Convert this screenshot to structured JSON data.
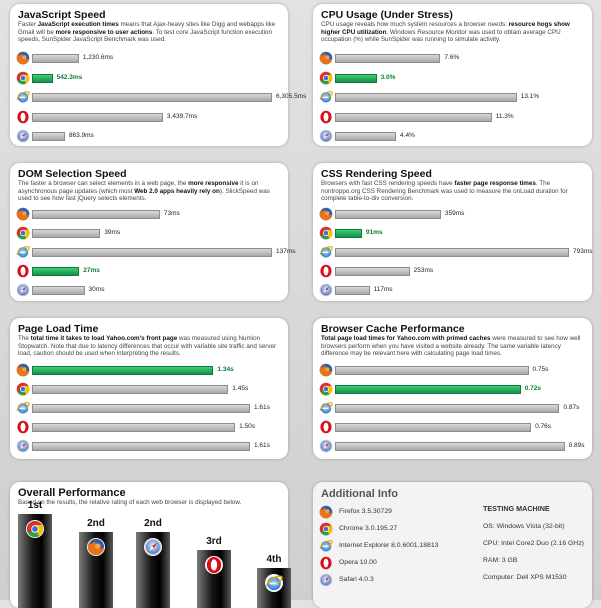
{
  "colors": {
    "best": "#16904a",
    "bar": "#a9a9a9"
  },
  "browsers": [
    {
      "icon": "firefox-icon"
    },
    {
      "icon": "chrome-icon"
    },
    {
      "icon": "internet-explorer-icon"
    },
    {
      "icon": "opera-icon"
    },
    {
      "icon": "safari-icon"
    }
  ],
  "panels": {
    "js": {
      "title": "JavaScript Speed",
      "desc_parts": [
        "Faster ",
        "JavaScript execution times",
        " means that Ajax-heavy sites like Digg and webapps like Gmail will be ",
        "more responsive to user actions",
        ". To test core JavaScript function execution speeds, SunSpider JavaScript Benchmark was used."
      ],
      "labels": [
        "1,230.6ms",
        "542.3ms",
        "6,305.5ms",
        "3,439.7ms",
        "863.9ms"
      ]
    },
    "cpu": {
      "title": "CPU Usage (Under Stress)",
      "desc_parts": [
        "CPU usage reveals how much system resources a browser needs: ",
        "resource hogs show higher CPU utilization",
        ". Windows Resource Monitor was used to obtain average CPU occupation (%) while SunSpider was running to simulate activity."
      ],
      "labels": [
        "7.6%",
        "3.0%",
        "13.1%",
        "11.3%",
        "4.4%"
      ]
    },
    "dom": {
      "title": "DOM Selection Speed",
      "desc_parts": [
        "The faster a browser can select elements in a web page, the ",
        "more responsive",
        " it is on asynchronous page updates (which most ",
        "Web 2.0 apps heavily rely on",
        "). SlickSpeed was used to see how fast jQuery selects elements."
      ],
      "labels": [
        "73ms",
        "39ms",
        "137ms",
        "27ms",
        "30ms"
      ]
    },
    "css": {
      "title": "CSS Rendering Speed",
      "desc_parts": [
        "Browsers with fast CSS rendering speeds have ",
        "faster page response times",
        ". The nontroppo.org CSS Rendering Benchmark was used to measure the onLoad duration for complete table-to-div conversion."
      ],
      "labels": [
        "359ms",
        "91ms",
        "793ms",
        "253ms",
        "117ms"
      ]
    },
    "load": {
      "title": "Page Load Time",
      "desc_parts": [
        "The ",
        "total time it takes to load Yahoo.com's front page",
        " was measured using Numion Stopwatch. Note that due to latency differences that occur with variable site traffic and server load, caution should be used when interpreting the results."
      ],
      "labels": [
        "1.34s",
        "1.45s",
        "1.61s",
        "1.50s",
        "1.61s"
      ]
    },
    "cache": {
      "title": "Browser Cache Performance",
      "desc_parts": [
        "Total page load times for Yahoo.com with primed caches",
        " were measured to see how well browsers perform when you have visited a website already. The same variable latency difference may be relevant here with calculating page load times."
      ],
      "labels": [
        "0.75s",
        "0.72s",
        "0.87s",
        "0.76s",
        "0.89s"
      ]
    }
  },
  "overall": {
    "title": "Overall Performance",
    "desc": "Based on the results, the relative rating of each web browser is displayed below.",
    "ranks": [
      {
        "label": "1st",
        "icon": "chrome-icon"
      },
      {
        "label": "2nd",
        "icon": "firefox-icon"
      },
      {
        "label": "2nd",
        "icon": "safari-icon"
      },
      {
        "label": "3rd",
        "icon": "opera-icon"
      },
      {
        "label": "4th",
        "icon": "internet-explorer-icon"
      }
    ]
  },
  "info": {
    "title": "Additional Info",
    "versions": [
      "Firefox 3.5.30729",
      "Chrome 3.0.195.27",
      "Internet Explorer 8.0.6001.18813",
      "Opera 10.00",
      "Safari 4.0.3"
    ],
    "machine_title": "TESTING MACHINE",
    "specs": [
      "OS: Windows Vista (32-bit)",
      "CPU: Intel Core2 Duo (2.16 GHz)",
      "RAM: 3 GB",
      "Computer: Dell XPS M1530"
    ]
  },
  "chart_data": [
    {
      "type": "bar",
      "title": "JavaScript Speed",
      "unit": "ms",
      "lower_is_better": true,
      "categories": [
        "Firefox",
        "Chrome",
        "Internet Explorer",
        "Opera",
        "Safari"
      ],
      "values": [
        1230.6,
        542.3,
        6305.5,
        3439.7,
        863.9
      ],
      "best_index": 1,
      "xlim": [
        0,
        6305.5
      ]
    },
    {
      "type": "bar",
      "title": "CPU Usage (Under Stress)",
      "unit": "%",
      "lower_is_better": true,
      "categories": [
        "Firefox",
        "Chrome",
        "Internet Explorer",
        "Opera",
        "Safari"
      ],
      "values": [
        7.6,
        3.0,
        13.1,
        11.3,
        4.4
      ],
      "best_index": 1,
      "xlim": [
        0,
        15.5
      ]
    },
    {
      "type": "bar",
      "title": "DOM Selection Speed",
      "unit": "ms",
      "lower_is_better": true,
      "categories": [
        "Firefox",
        "Chrome",
        "Internet Explorer",
        "Opera",
        "Safari"
      ],
      "values": [
        73,
        39,
        137,
        27,
        30
      ],
      "best_index": 3,
      "xlim": [
        0,
        137
      ]
    },
    {
      "type": "bar",
      "title": "CSS Rendering Speed",
      "unit": "ms",
      "lower_is_better": true,
      "categories": [
        "Firefox",
        "Chrome",
        "Internet Explorer",
        "Opera",
        "Safari"
      ],
      "values": [
        359,
        91,
        793,
        253,
        117
      ],
      "best_index": 1,
      "xlim": [
        0,
        793
      ]
    },
    {
      "type": "bar",
      "title": "Page Load Time",
      "unit": "s",
      "lower_is_better": true,
      "categories": [
        "Firefox",
        "Chrome",
        "Internet Explorer",
        "Opera",
        "Safari"
      ],
      "values": [
        1.34,
        1.45,
        1.61,
        1.5,
        1.61
      ],
      "best_index": 0,
      "xlim": [
        0,
        1.95
      ]
    },
    {
      "type": "bar",
      "title": "Browser Cache Performance",
      "unit": "s",
      "lower_is_better": true,
      "categories": [
        "Firefox",
        "Chrome",
        "Internet Explorer",
        "Opera",
        "Safari"
      ],
      "values": [
        0.75,
        0.72,
        0.87,
        0.76,
        0.89
      ],
      "best_index": 1,
      "xlim": [
        0,
        1.0
      ]
    },
    {
      "type": "bar",
      "title": "Overall Performance",
      "categories": [
        "Chrome",
        "Firefox",
        "Safari",
        "Opera",
        "Internet Explorer"
      ],
      "rank_labels": [
        "1st",
        "2nd",
        "2nd",
        "3rd",
        "4th"
      ],
      "values": [
        1,
        2,
        2,
        3,
        4
      ]
    }
  ]
}
